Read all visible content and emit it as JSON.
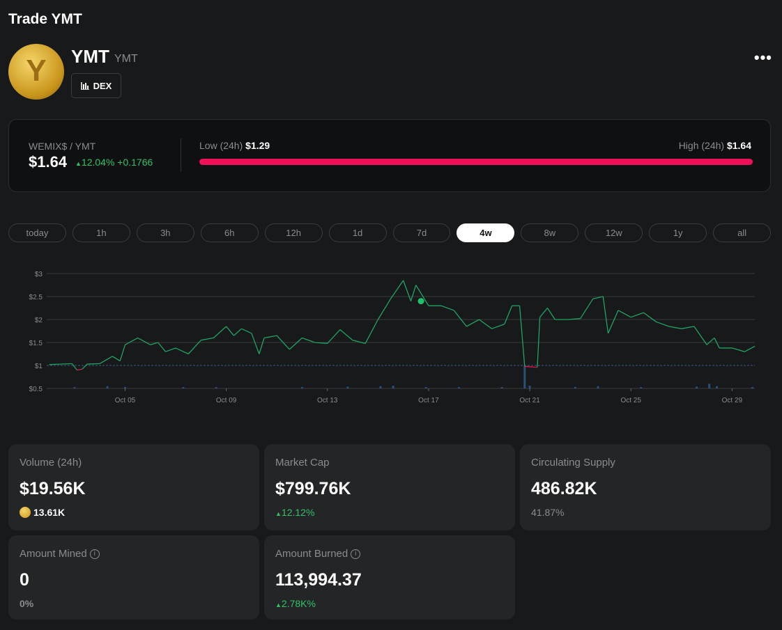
{
  "page_title": "Trade YMT",
  "token": {
    "name": "YMT",
    "symbol": "YMT",
    "dex_label": "DEX",
    "more_icon": "more-horizontal-icon"
  },
  "price": {
    "pair": "WEMIX$ / YMT",
    "value": "$1.64",
    "change_pct": "12.04%",
    "change_abs": "+0.1766",
    "low_label": "Low (24h)",
    "low": "$1.29",
    "high_label": "High (24h)",
    "high": "$1.64",
    "range_fill": 1.0
  },
  "tabs": [
    "today",
    "1h",
    "3h",
    "6h",
    "12h",
    "1d",
    "7d",
    "4w",
    "8w",
    "12w",
    "1y",
    "all"
  ],
  "active_tab": "4w",
  "chart_data": {
    "type": "line",
    "y_ticks": [
      "$3",
      "$2.5",
      "$2",
      "$1.5",
      "$1",
      "$0.5"
    ],
    "y_values": [
      3,
      2.5,
      2,
      1.5,
      1,
      0.5
    ],
    "ylim": [
      0.5,
      3
    ],
    "x_ticks": [
      "Oct 05",
      "Oct 09",
      "Oct 13",
      "Oct 17",
      "Oct 21",
      "Oct 25",
      "Oct 29"
    ],
    "x_tick_days": [
      5,
      9,
      13,
      17,
      21,
      25,
      29
    ],
    "xlim": [
      1.9,
      29.9
    ],
    "baseline": 1,
    "colors": {
      "up": "#1fa464",
      "down": "#e0174f",
      "volume": "#2b4f78"
    },
    "marker": {
      "day": 16.7,
      "price": 2.4
    },
    "series": [
      [
        2.0,
        1.02
      ],
      [
        2.5,
        1.03
      ],
      [
        2.9,
        1.04
      ],
      [
        3.1,
        0.9
      ],
      [
        3.3,
        0.92
      ],
      [
        3.5,
        1.03
      ],
      [
        4.0,
        1.04
      ],
      [
        4.5,
        1.2
      ],
      [
        4.8,
        1.1
      ],
      [
        5.0,
        1.45
      ],
      [
        5.5,
        1.6
      ],
      [
        6.0,
        1.45
      ],
      [
        6.3,
        1.5
      ],
      [
        6.6,
        1.3
      ],
      [
        7.0,
        1.38
      ],
      [
        7.5,
        1.25
      ],
      [
        8.0,
        1.55
      ],
      [
        8.5,
        1.6
      ],
      [
        9.0,
        1.85
      ],
      [
        9.3,
        1.65
      ],
      [
        9.6,
        1.8
      ],
      [
        10.0,
        1.7
      ],
      [
        10.3,
        1.25
      ],
      [
        10.5,
        1.6
      ],
      [
        11.0,
        1.65
      ],
      [
        11.5,
        1.35
      ],
      [
        12.0,
        1.6
      ],
      [
        12.5,
        1.5
      ],
      [
        13.0,
        1.48
      ],
      [
        13.5,
        1.78
      ],
      [
        14.0,
        1.55
      ],
      [
        14.5,
        1.48
      ],
      [
        15.0,
        2.0
      ],
      [
        15.5,
        2.45
      ],
      [
        16.0,
        2.85
      ],
      [
        16.3,
        2.4
      ],
      [
        16.5,
        2.75
      ],
      [
        17.0,
        2.3
      ],
      [
        17.5,
        2.3
      ],
      [
        18.0,
        2.2
      ],
      [
        18.5,
        1.85
      ],
      [
        19.0,
        2.0
      ],
      [
        19.5,
        1.8
      ],
      [
        20.0,
        1.9
      ],
      [
        20.3,
        2.3
      ],
      [
        20.6,
        2.3
      ],
      [
        20.8,
        0.98
      ],
      [
        21.3,
        0.96
      ],
      [
        21.4,
        2.05
      ],
      [
        21.7,
        2.25
      ],
      [
        22.0,
        2.0
      ],
      [
        22.5,
        2.0
      ],
      [
        23.0,
        2.02
      ],
      [
        23.5,
        2.45
      ],
      [
        23.9,
        2.5
      ],
      [
        24.1,
        1.7
      ],
      [
        24.5,
        2.2
      ],
      [
        25.0,
        2.05
      ],
      [
        25.5,
        2.15
      ],
      [
        26.0,
        1.95
      ],
      [
        26.5,
        1.85
      ],
      [
        27.0,
        1.8
      ],
      [
        27.5,
        1.85
      ],
      [
        28.0,
        1.45
      ],
      [
        28.3,
        1.6
      ],
      [
        28.5,
        1.38
      ],
      [
        29.0,
        1.38
      ],
      [
        29.5,
        1.3
      ],
      [
        29.9,
        1.42
      ]
    ],
    "volume": [
      [
        3.0,
        0.05
      ],
      [
        4.3,
        0.1
      ],
      [
        5.0,
        0.06
      ],
      [
        7.3,
        0.06
      ],
      [
        8.6,
        0.05
      ],
      [
        12.0,
        0.06
      ],
      [
        13.8,
        0.08
      ],
      [
        15.1,
        0.1
      ],
      [
        15.6,
        0.12
      ],
      [
        16.9,
        0.06
      ],
      [
        18.2,
        0.05
      ],
      [
        19.9,
        0.05
      ],
      [
        20.8,
        1.0
      ],
      [
        21.0,
        0.12
      ],
      [
        22.8,
        0.07
      ],
      [
        23.7,
        0.1
      ],
      [
        25.4,
        0.06
      ],
      [
        27.6,
        0.08
      ],
      [
        28.1,
        0.2
      ],
      [
        28.4,
        0.1
      ],
      [
        29.8,
        0.06
      ]
    ]
  },
  "stats": [
    {
      "label": "Volume (24h)",
      "value": "$19.56K",
      "sub": "13.61K"
    },
    {
      "label": "Market Cap",
      "value": "$799.76K",
      "sub": "12.12%"
    },
    {
      "label": "Circulating Supply",
      "value": "486.82K",
      "sub": "41.87%"
    },
    {
      "label": "Amount Mined",
      "value": "0",
      "sub": "0%"
    },
    {
      "label": "Amount Burned",
      "value": "113,994.37",
      "sub": "2.78K%"
    }
  ]
}
